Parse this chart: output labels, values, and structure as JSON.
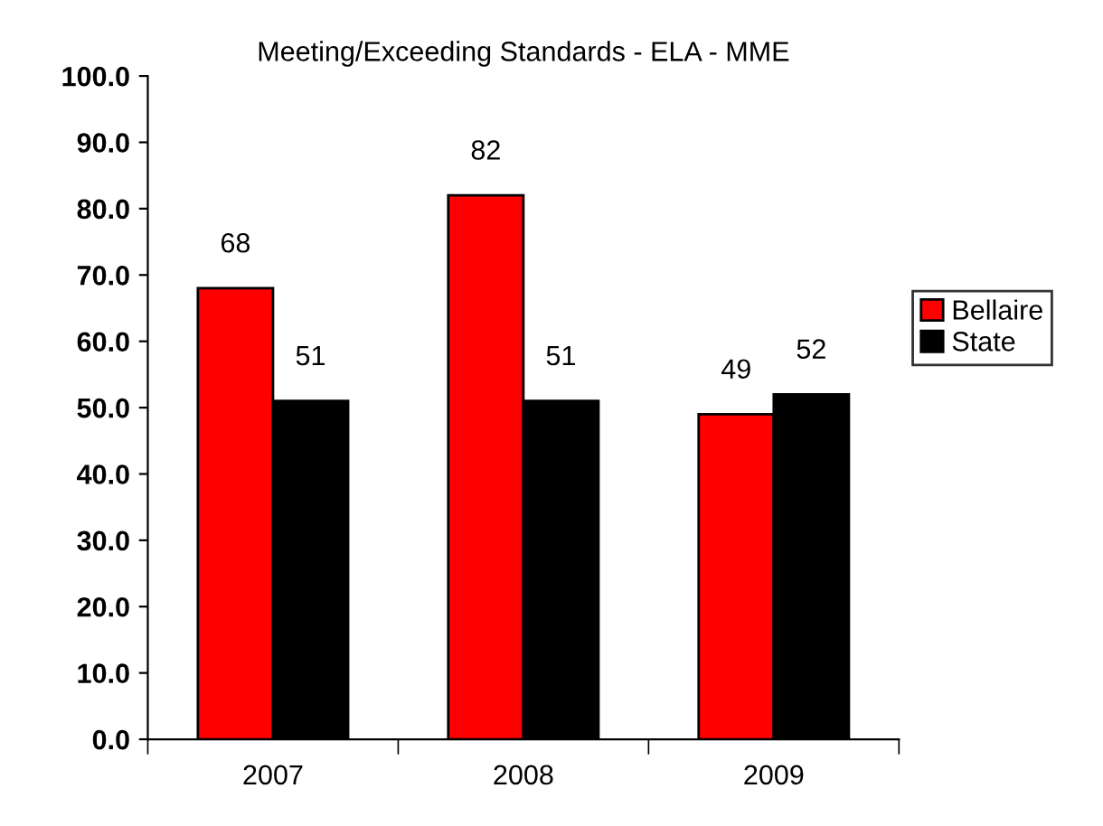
{
  "chart_data": {
    "type": "bar",
    "title": "Meeting/Exceeding Standards - ELA - MME",
    "categories": [
      "2007",
      "2008",
      "2009"
    ],
    "series": [
      {
        "name": "Bellaire",
        "color": "#ff0000",
        "values": [
          68,
          82,
          49
        ]
      },
      {
        "name": "State",
        "color": "#000000",
        "values": [
          51,
          51,
          52
        ]
      }
    ],
    "ylim": [
      0,
      100
    ],
    "yticks": [
      {
        "value": 0,
        "label": "0.0"
      },
      {
        "value": 10,
        "label": "10.0"
      },
      {
        "value": 20,
        "label": "20.0"
      },
      {
        "value": 30,
        "label": "30.0"
      },
      {
        "value": 40,
        "label": "40.0"
      },
      {
        "value": 50,
        "label": "50.0"
      },
      {
        "value": 60,
        "label": "60.0"
      },
      {
        "value": 70,
        "label": "70.0"
      },
      {
        "value": 80,
        "label": "80.0"
      },
      {
        "value": 90,
        "label": "90.0"
      },
      {
        "value": 100,
        "label": "100.0"
      }
    ],
    "data_labels": true,
    "legend": "right",
    "grid": false
  }
}
